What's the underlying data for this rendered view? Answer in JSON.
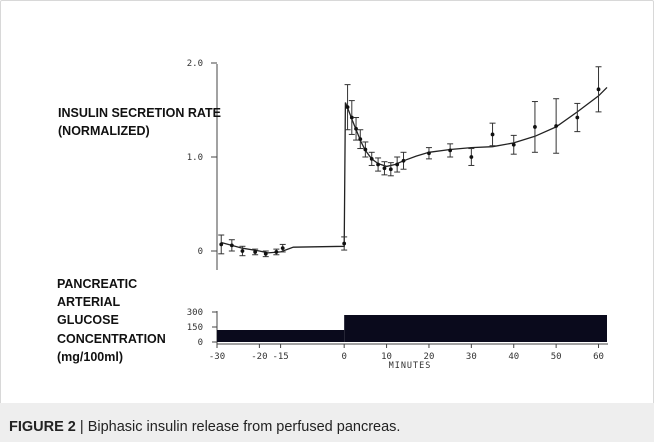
{
  "figure": {
    "caption_label": "FIGURE 2",
    "caption_separator": "|",
    "caption_text": "Biphasic insulin release from perfused pancreas."
  },
  "chart_data": [
    {
      "type": "scatter",
      "title": "",
      "ylabel_lines": [
        "INSULIN SECRETION RATE",
        "(NORMALIZED)"
      ],
      "xlabel": "",
      "xlim": [
        -30,
        62
      ],
      "ylim": [
        -0.1,
        2.0
      ],
      "yticks": [
        {
          "value": 0,
          "label": "0"
        },
        {
          "value": 1.0,
          "label": "1.0"
        },
        {
          "value": 2.0,
          "label": "2.0"
        }
      ],
      "points": [
        {
          "x": -29,
          "y": 0.07,
          "err": 0.1
        },
        {
          "x": -26.5,
          "y": 0.06,
          "err": 0.06
        },
        {
          "x": -24,
          "y": 0.0,
          "err": 0.05
        },
        {
          "x": -21,
          "y": -0.01,
          "err": 0.03
        },
        {
          "x": -18.5,
          "y": -0.03,
          "err": 0.03
        },
        {
          "x": -16,
          "y": -0.01,
          "err": 0.03
        },
        {
          "x": -14.5,
          "y": 0.03,
          "err": 0.04
        },
        {
          "x": 0,
          "y": 0.08,
          "err": 0.07
        },
        {
          "x": 0.8,
          "y": 1.53,
          "err": 0.24
        },
        {
          "x": 1.8,
          "y": 1.42,
          "err": 0.18
        },
        {
          "x": 2.8,
          "y": 1.3,
          "err": 0.12
        },
        {
          "x": 3.8,
          "y": 1.19,
          "err": 0.1
        },
        {
          "x": 5,
          "y": 1.08,
          "err": 0.08
        },
        {
          "x": 6.5,
          "y": 0.98,
          "err": 0.07
        },
        {
          "x": 8,
          "y": 0.92,
          "err": 0.07
        },
        {
          "x": 9.5,
          "y": 0.88,
          "err": 0.07
        },
        {
          "x": 11,
          "y": 0.87,
          "err": 0.07
        },
        {
          "x": 12.5,
          "y": 0.92,
          "err": 0.08
        },
        {
          "x": 14,
          "y": 0.96,
          "err": 0.09
        },
        {
          "x": 20,
          "y": 1.04,
          "err": 0.06
        },
        {
          "x": 25,
          "y": 1.07,
          "err": 0.07
        },
        {
          "x": 30,
          "y": 1.0,
          "err": 0.09
        },
        {
          "x": 35,
          "y": 1.24,
          "err": 0.12
        },
        {
          "x": 40,
          "y": 1.13,
          "err": 0.1
        },
        {
          "x": 45,
          "y": 1.32,
          "err": 0.27
        },
        {
          "x": 50,
          "y": 1.33,
          "err": 0.29
        },
        {
          "x": 55,
          "y": 1.42,
          "err": 0.15
        },
        {
          "x": 60,
          "y": 1.72,
          "err": 0.24
        }
      ],
      "fit_curve": [
        [
          -29,
          0.09
        ],
        [
          -24,
          0.03
        ],
        [
          -20,
          0.0
        ],
        [
          -18,
          -0.02
        ],
        [
          -15,
          -0.01
        ],
        [
          -12,
          0.04
        ],
        [
          0,
          0.05
        ],
        [
          0.3,
          1.58
        ],
        [
          1,
          1.5
        ],
        [
          2,
          1.38
        ],
        [
          3,
          1.27
        ],
        [
          4,
          1.16
        ],
        [
          5,
          1.07
        ],
        [
          6.5,
          0.98
        ],
        [
          8,
          0.93
        ],
        [
          10,
          0.9
        ],
        [
          12,
          0.92
        ],
        [
          14,
          0.96
        ],
        [
          17,
          1.01
        ],
        [
          20,
          1.05
        ],
        [
          25,
          1.08
        ],
        [
          30,
          1.1
        ],
        [
          35,
          1.11
        ],
        [
          40,
          1.15
        ],
        [
          45,
          1.22
        ],
        [
          50,
          1.32
        ],
        [
          55,
          1.48
        ],
        [
          60,
          1.65
        ],
        [
          62,
          1.74
        ]
      ]
    },
    {
      "type": "area",
      "title": "",
      "ylabel_lines": [
        "PANCREATIC",
        "ARTERIAL",
        "GLUCOSE",
        "CONCENTRATION",
        "(mg/100ml)"
      ],
      "xlabel": "MINUTES",
      "xlim": [
        -30,
        62
      ],
      "ylim": [
        0,
        300
      ],
      "yticks": [
        {
          "value": 300,
          "label": "300"
        },
        {
          "value": 150,
          "label": "150"
        },
        {
          "value": 0,
          "label": "0"
        }
      ],
      "xticks": [
        {
          "value": -30,
          "label": "-30"
        },
        {
          "value": -20,
          "label": "-20"
        },
        {
          "value": -15,
          "label": "-15"
        },
        {
          "value": 0,
          "label": "0"
        },
        {
          "value": 10,
          "label": "10"
        },
        {
          "value": 20,
          "label": "20"
        },
        {
          "value": 30,
          "label": "30"
        },
        {
          "value": 40,
          "label": "40"
        },
        {
          "value": 50,
          "label": "50"
        },
        {
          "value": 60,
          "label": "60"
        }
      ],
      "steps": [
        {
          "x_start": -30,
          "x_end": 0,
          "value": 120
        },
        {
          "x_start": 0,
          "x_end": 62,
          "value": 270
        }
      ],
      "fill_color": "#0a0a1c"
    }
  ]
}
